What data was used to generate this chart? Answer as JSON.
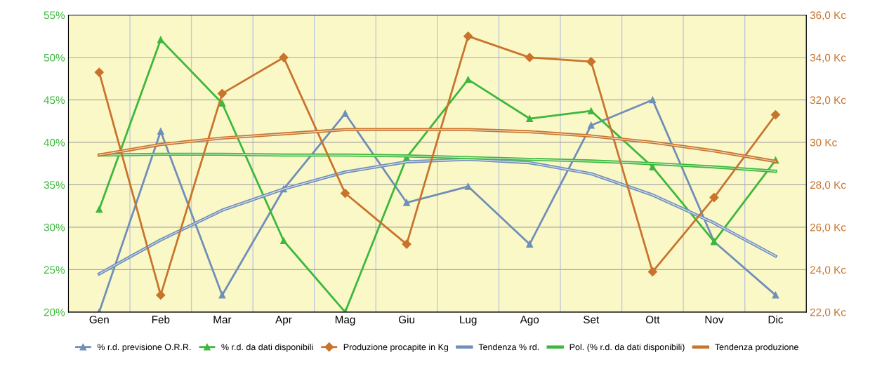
{
  "chart_data": {
    "type": "line",
    "categories": [
      "Gen",
      "Feb",
      "Mar",
      "Apr",
      "Mag",
      "Giu",
      "Lug",
      "Ago",
      "Set",
      "Ott",
      "Nov",
      "Dic"
    ],
    "series": [
      {
        "name": "% r.d. previsione O.R.R.",
        "color": "#6f8fb8",
        "marker": "triangle",
        "values": [
          20.0,
          41.3,
          22.0,
          34.5,
          43.4,
          32.9,
          34.8,
          28.0,
          42.0,
          45.0,
          28.3,
          22.0
        ]
      },
      {
        "name": "% r.d. da dati disponibili",
        "color": "#3cb83c",
        "marker": "triangle",
        "values": [
          32.1,
          52.1,
          44.6,
          28.4,
          20.0,
          38.2,
          47.4,
          42.8,
          43.7,
          37.1,
          28.3,
          37.9
        ]
      },
      {
        "name": "Produzione procapite in Kg",
        "color": "#c8742c",
        "marker": "diamond",
        "axis": "y2",
        "values": [
          33.3,
          22.8,
          32.3,
          34.0,
          27.6,
          25.2,
          35.0,
          34.0,
          33.8,
          23.9,
          27.4,
          31.3
        ]
      },
      {
        "name": "Tendenza % rd.",
        "color": "#6f8fb8",
        "marker": "none",
        "values": [
          24.5,
          28.5,
          32.0,
          34.5,
          36.5,
          37.7,
          38.0,
          37.6,
          36.3,
          33.8,
          30.5,
          26.6
        ]
      },
      {
        "name": "Pol. (% r.d. da dati disponibili)",
        "color": "#3cb83c",
        "marker": "none",
        "values": [
          38.5,
          38.6,
          38.6,
          38.5,
          38.5,
          38.4,
          38.2,
          38.0,
          37.8,
          37.5,
          37.1,
          36.6
        ]
      },
      {
        "name": "Tendenza produzione",
        "color": "#c8742c",
        "marker": "none",
        "axis": "y2",
        "values": [
          29.4,
          29.9,
          30.2,
          30.4,
          30.6,
          30.6,
          30.6,
          30.5,
          30.3,
          30.0,
          29.6,
          29.1
        ]
      }
    ],
    "ylim": [
      20,
      55
    ],
    "yticks": [
      {
        "value": 20,
        "label": "20%"
      },
      {
        "value": 25,
        "label": "25%"
      },
      {
        "value": 30,
        "label": "30%"
      },
      {
        "value": 35,
        "label": "35%"
      },
      {
        "value": 40,
        "label": "40%"
      },
      {
        "value": 45,
        "label": "45%"
      },
      {
        "value": 50,
        "label": "50%"
      },
      {
        "value": 55,
        "label": "55%"
      }
    ],
    "y2lim": [
      22,
      36
    ],
    "y2ticks": [
      {
        "value": 22,
        "label": "22,0 Kc"
      },
      {
        "value": 24,
        "label": "24,0 Kc"
      },
      {
        "value": 26,
        "label": "26,0 Kc"
      },
      {
        "value": 28,
        "label": "28,0 Kc"
      },
      {
        "value": 30,
        "label": "30 Kc"
      },
      {
        "value": 32,
        "label": "32,0 Kc"
      },
      {
        "value": 34,
        "label": "34,0 Kc"
      },
      {
        "value": 36,
        "label": "36,0 Kc"
      }
    ],
    "grid": true,
    "legend": "bottom"
  }
}
